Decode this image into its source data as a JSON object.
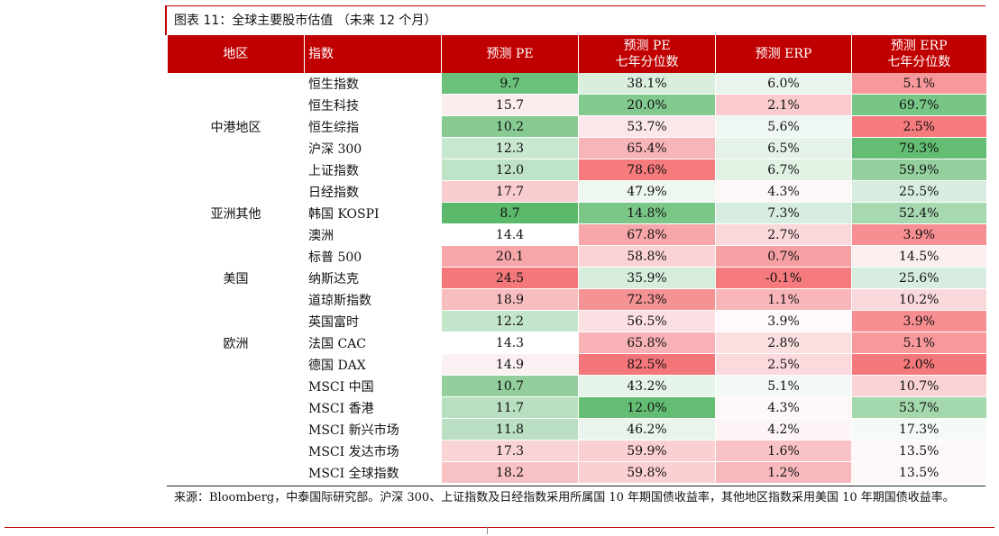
{
  "caption": "图表 11：全球主要股市估值 （未来 12 个月）",
  "headers": {
    "region": "地区",
    "index": "指数",
    "pe": "预测 PE",
    "pe_pct_1": "预测 PE",
    "pe_pct_2": "七年分位数",
    "erp": "预测 ERP",
    "erp_pct_1": "预测 ERP",
    "erp_pct_2": "七年分位数"
  },
  "groups": [
    {
      "region": "中港地区",
      "rows": [
        {
          "name": "恒生指数",
          "pe": "9.7",
          "pe_pct": "38.1%",
          "erp": "6.0%",
          "erp_pct": "5.1%",
          "colors": [
            "#6cc17a",
            "#d9eedd",
            "#e9f4ec",
            "#f7999b"
          ]
        },
        {
          "name": "恒生科技",
          "pe": "15.7",
          "pe_pct": "20.0%",
          "erp": "2.1%",
          "erp_pct": "69.7%",
          "colors": [
            "#fbecee",
            "#82c98f",
            "#f9cbcd",
            "#78c686"
          ]
        },
        {
          "name": "恒生综指",
          "pe": "10.2",
          "pe_pct": "53.7%",
          "erp": "5.6%",
          "erp_pct": "2.5%",
          "colors": [
            "#87cb93",
            "#fbe7e9",
            "#eef7f1",
            "#f57b7d"
          ]
        },
        {
          "name": "沪深 300",
          "pe": "12.3",
          "pe_pct": "65.4%",
          "erp": "6.5%",
          "erp_pct": "79.3%",
          "colors": [
            "#c8e7cf",
            "#f8b5b8",
            "#e4f2e7",
            "#63bd73"
          ]
        },
        {
          "name": "上证指数",
          "pe": "12.0",
          "pe_pct": "78.6%",
          "erp": "6.7%",
          "erp_pct": "59.9%",
          "colors": [
            "#bfe3c7",
            "#f57b7d",
            "#e1f1e4",
            "#94d09e"
          ]
        }
      ]
    },
    {
      "region": "亚洲其他",
      "rows": [
        {
          "name": "日经指数",
          "pe": "17.7",
          "pe_pct": "47.9%",
          "erp": "4.3%",
          "erp_pct": "25.5%",
          "colors": [
            "#f9cdd0",
            "#eef7f0",
            "#fdf7f8",
            "#d7ede0"
          ]
        },
        {
          "name": "韩国 KOSPI",
          "pe": "8.7",
          "pe_pct": "14.8%",
          "erp": "7.3%",
          "erp_pct": "52.4%",
          "colors": [
            "#5bb96b",
            "#79c687",
            "#d7ede0",
            "#a7d9b1"
          ]
        },
        {
          "name": "澳洲",
          "pe": "14.4",
          "pe_pct": "67.8%",
          "erp": "2.7%",
          "erp_pct": "3.9%",
          "colors": [
            "#ffffff",
            "#f7a6a9",
            "#fad7da",
            "#f78e91"
          ]
        }
      ]
    },
    {
      "region": "美国",
      "rows": [
        {
          "name": "标普 500",
          "pe": "20.1",
          "pe_pct": "58.8%",
          "erp": "0.7%",
          "erp_pct": "14.5%",
          "colors": [
            "#f7a6a9",
            "#fbd3d6",
            "#f6a0a3",
            "#fcefef"
          ]
        },
        {
          "name": "纳斯达克",
          "pe": "24.5",
          "pe_pct": "35.9%",
          "erp": "-0.1%",
          "erp_pct": "25.6%",
          "colors": [
            "#f4777a",
            "#d6eddc",
            "#f57a7d",
            "#d7ede0"
          ]
        },
        {
          "name": "道琼斯指数",
          "pe": "18.9",
          "pe_pct": "72.3%",
          "erp": "1.1%",
          "erp_pct": "10.2%",
          "colors": [
            "#f8bdbf",
            "#f59294",
            "#f8b6b9",
            "#fad9dc"
          ]
        }
      ]
    },
    {
      "region": "欧洲",
      "rows": [
        {
          "name": "英国富时",
          "pe": "12.2",
          "pe_pct": "56.5%",
          "erp": "3.9%",
          "erp_pct": "3.9%",
          "colors": [
            "#c3e5ca",
            "#fcdfe2",
            "#fef9fa",
            "#f78e91"
          ]
        },
        {
          "name": "法国 CAC",
          "pe": "14.3",
          "pe_pct": "65.8%",
          "erp": "2.8%",
          "erp_pct": "5.1%",
          "colors": [
            "#ffffff",
            "#f8b2b5",
            "#fbdfe1",
            "#f7999b"
          ]
        },
        {
          "name": "德国 DAX",
          "pe": "14.9",
          "pe_pct": "82.5%",
          "erp": "2.5%",
          "erp_pct": "2.0%",
          "colors": [
            "#fbf1f2",
            "#f5767a",
            "#fbd9dc",
            "#f5787b"
          ]
        }
      ]
    },
    {
      "region": "",
      "rows": [
        {
          "name": "MSCI 中国",
          "pe": "10.7",
          "pe_pct": "43.2%",
          "erp": "5.1%",
          "erp_pct": "10.7%",
          "colors": [
            "#93cf9d",
            "#e5f3e8",
            "#f3faf5",
            "#fad3d6"
          ]
        },
        {
          "name": "MSCI 香港",
          "pe": "11.7",
          "pe_pct": "12.0%",
          "erp": "4.3%",
          "erp_pct": "53.7%",
          "colors": [
            "#b8e0c0",
            "#63bd73",
            "#fdf7f8",
            "#a3d7ac"
          ]
        },
        {
          "name": "MSCI 新兴市场",
          "pe": "11.8",
          "pe_pct": "46.2%",
          "erp": "4.2%",
          "erp_pct": "17.3%",
          "colors": [
            "#badfc2",
            "#e9f5ec",
            "#fdf4f5",
            "#f4faf6"
          ]
        },
        {
          "name": "MSCI 发达市场",
          "pe": "17.3",
          "pe_pct": "59.9%",
          "erp": "1.6%",
          "erp_pct": "13.5%",
          "colors": [
            "#fad3d6",
            "#fbd0d3",
            "#f9c3c5",
            "#fef7f7"
          ]
        },
        {
          "name": "MSCI 全球指数",
          "pe": "18.2",
          "pe_pct": "59.8%",
          "erp": "1.2%",
          "erp_pct": "13.5%",
          "colors": [
            "#f8c2c5",
            "#fbd0d3",
            "#f8b9bc",
            "#fef7f7"
          ]
        }
      ]
    }
  ],
  "source": "来源：Bloomberg，中泰国际研究部。沪深 300、上证指数及日经指数采用所属国 10 年期国债收益率，其他地区指数采用美国 10 年期国债收益率。"
}
